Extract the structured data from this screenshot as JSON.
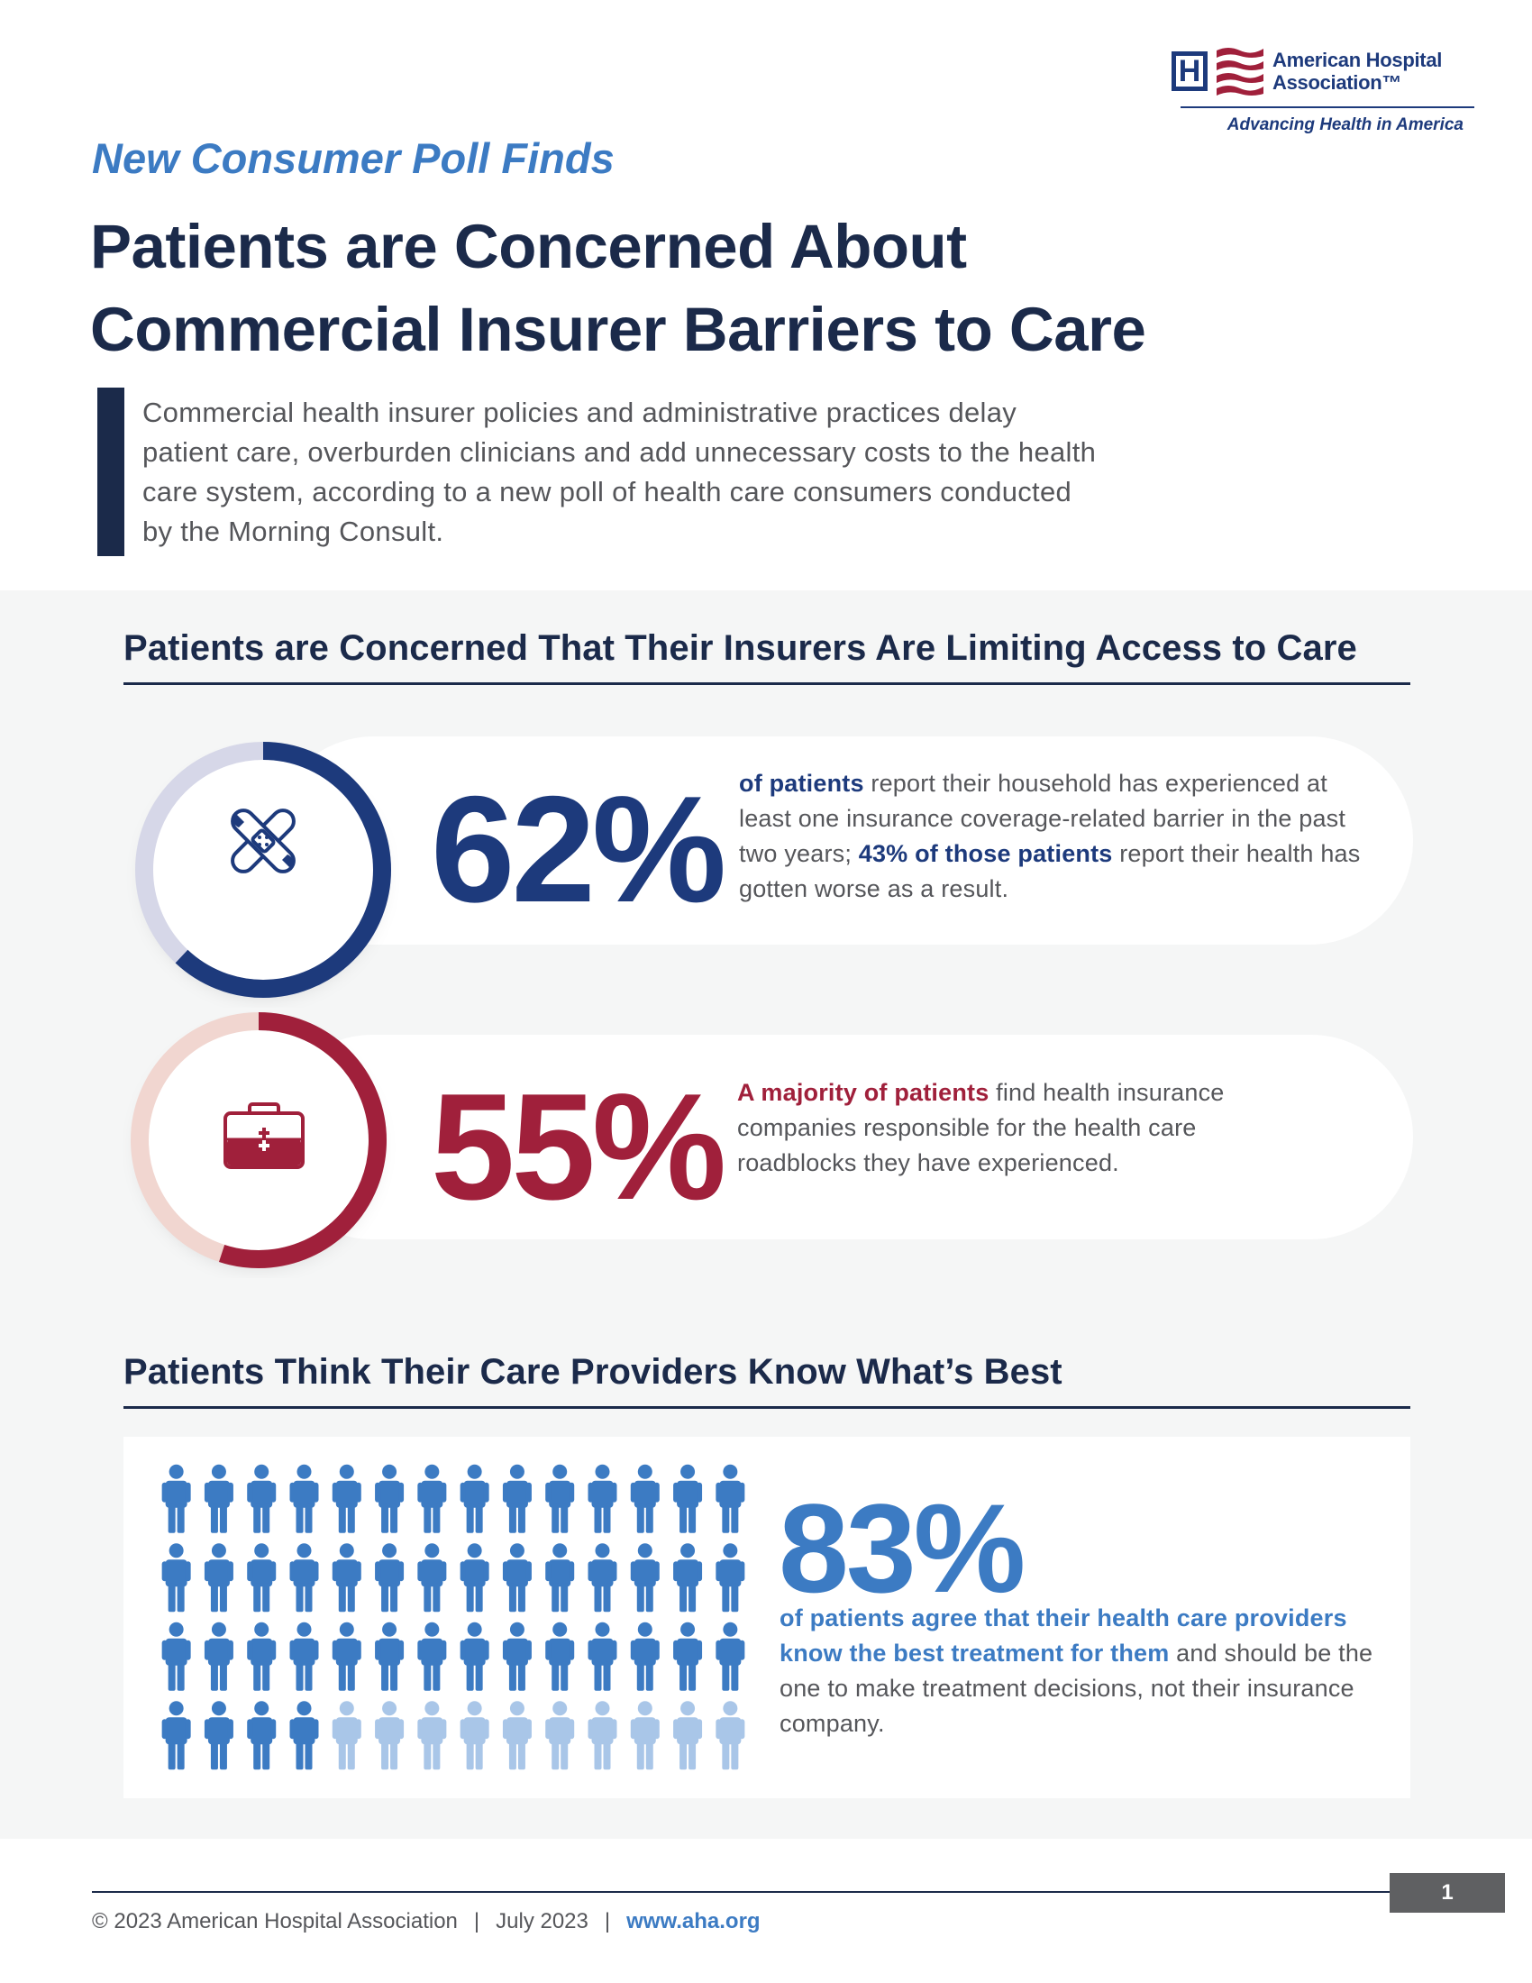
{
  "logo": {
    "name_line1": "American Hospital",
    "name_line2": "Association™",
    "tagline": "Advancing Health in America",
    "mark_letter": "H"
  },
  "header": {
    "kicker": "New Consumer Poll Finds",
    "headline_line1": "Patients are Concerned About",
    "headline_line2": "Commercial Insurer Barriers to Care",
    "intro": "Commercial health insurer policies and administrative practices delay patient care, overburden clinicians and add unnecessary costs to the health care system, according to a new poll of health care consumers conducted by the Morning Consult."
  },
  "section1": {
    "title": "Patients are Concerned That Their Insurers Are Limiting Access to Care",
    "stat1": {
      "value": "62%",
      "percent": 62,
      "icon": "bandage-icon",
      "text_a": "of patients",
      "text_b": " report their household has experienced at least one insurance coverage-related barrier in the past two years; ",
      "text_c": "43% of those patients",
      "text_d": " report their health has gotten worse as a result."
    },
    "stat2": {
      "value": "55%",
      "percent": 55,
      "icon": "first-aid-kit-icon",
      "text_a": "A majority of patients",
      "text_b": " find health insurance companies responsible for the health care roadblocks they have experienced."
    }
  },
  "section2": {
    "title": "Patients Think Their Care Providers Know What’s Best",
    "stat": {
      "value": "83%",
      "percent": 83,
      "icon": "person-icon",
      "highlight": "of patients agree that their health care providers know the best treatment for them",
      "rest": " and should be the one to make treatment decisions, not their insurance company."
    },
    "grid": {
      "rows": 4,
      "cols": 14,
      "filled": 46.5
    }
  },
  "colors": {
    "navy": "#1b2a4a",
    "blue_dark": "#1d3a7c",
    "red": "#a0203b",
    "blue_light": "#3c7bc3",
    "person_light": "#a9c6e8",
    "ring_track_blue": "#d6d7e8",
    "ring_track_red": "#f1d6d0"
  },
  "footer": {
    "copyright": "© 2023 American Hospital Association",
    "sep1": "|",
    "date": "July 2023",
    "sep2": "|",
    "website": "www.aha.org",
    "page": "1"
  }
}
